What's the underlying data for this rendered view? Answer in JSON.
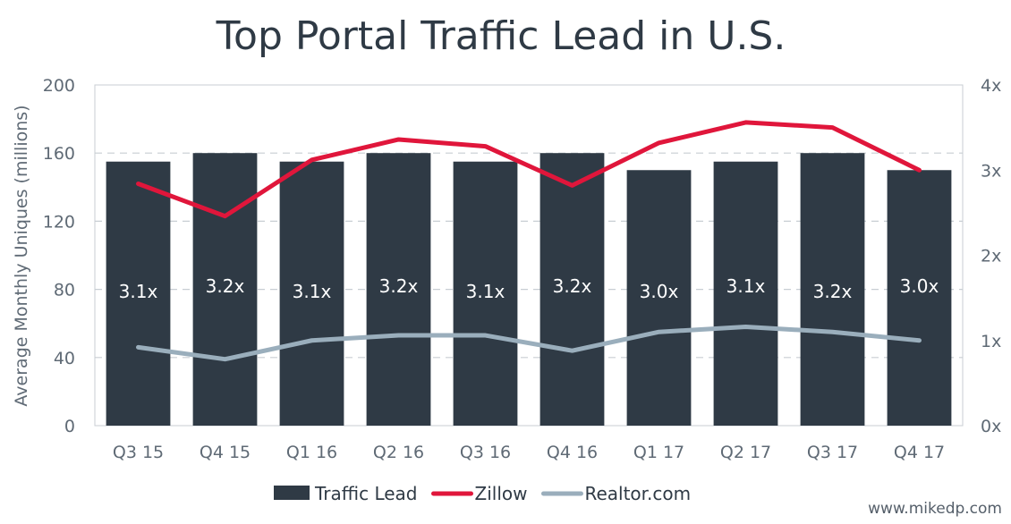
{
  "chart_data": {
    "type": "bar",
    "title": "Top Portal Traffic Lead in U.S.",
    "categories": [
      "Q3 15",
      "Q4 15",
      "Q1 16",
      "Q2 16",
      "Q3 16",
      "Q4 16",
      "Q1 17",
      "Q2 17",
      "Q3 17",
      "Q4 17"
    ],
    "series": [
      {
        "name": "Traffic Lead",
        "kind": "bar",
        "axis": "right",
        "color": "#2f3a45",
        "values": [
          3.1,
          3.2,
          3.1,
          3.2,
          3.1,
          3.2,
          3.0,
          3.1,
          3.2,
          3.0
        ],
        "labels": [
          "3.1x",
          "3.2x",
          "3.1x",
          "3.2x",
          "3.1x",
          "3.2x",
          "3.0x",
          "3.1x",
          "3.2x",
          "3.0x"
        ]
      },
      {
        "name": "Zillow",
        "kind": "line",
        "axis": "left",
        "color": "#e0163b",
        "values": [
          142,
          123,
          156,
          168,
          164,
          141,
          166,
          178,
          175,
          150
        ]
      },
      {
        "name": "Realtor.com",
        "kind": "line",
        "axis": "left",
        "color": "#9aaebc",
        "values": [
          46,
          39,
          50,
          53,
          53,
          44,
          55,
          58,
          55,
          50
        ]
      }
    ],
    "ylabel": "Average Monthly Uniques (millions)",
    "ylim": [
      0,
      200
    ],
    "yticks": [
      "0",
      "40",
      "80",
      "120",
      "160",
      "200"
    ],
    "y2lim": [
      0,
      4
    ],
    "y2ticks": [
      "0x",
      "1x",
      "2x",
      "3x",
      "4x"
    ],
    "grid": true,
    "legend_position": "bottom",
    "watermark": "www.mikedp.com"
  }
}
